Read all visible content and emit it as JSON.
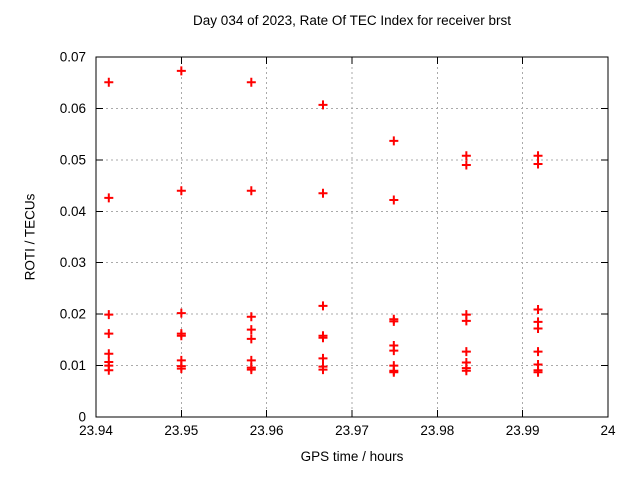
{
  "colors": {
    "marker": "#ff0000",
    "grid": "#aaaaaa",
    "axis": "#000000",
    "text": "#000000",
    "background": "#ffffff"
  },
  "chart_data": {
    "type": "scatter",
    "title": "Day 034 of 2023, Rate Of TEC Index for receiver brst",
    "xlabel": "GPS time / hours",
    "ylabel": "ROTI / TECUs",
    "xlim": [
      23.94,
      24
    ],
    "ylim": [
      0,
      0.07
    ],
    "xticks": [
      23.94,
      23.95,
      23.96,
      23.97,
      23.98,
      23.99,
      24
    ],
    "xtick_labels": [
      "23.94",
      "23.95",
      "23.96",
      "23.97",
      "23.98",
      "23.99",
      "24"
    ],
    "yticks": [
      0,
      0.01,
      0.02,
      0.03,
      0.04,
      0.05,
      0.06,
      0.07
    ],
    "ytick_labels": [
      "0",
      "0.01",
      "0.02",
      "0.03",
      "0.04",
      "0.05",
      "0.06",
      "0.07"
    ],
    "grid": true,
    "legend": "none",
    "marker": "plus",
    "points": [
      [
        23.9415,
        0.0651
      ],
      [
        23.9415,
        0.0426
      ],
      [
        23.9415,
        0.0199
      ],
      [
        23.9415,
        0.0162
      ],
      [
        23.9415,
        0.0123
      ],
      [
        23.9415,
        0.0107
      ],
      [
        23.9415,
        0.01
      ],
      [
        23.9415,
        0.0091
      ],
      [
        23.95,
        0.0673
      ],
      [
        23.95,
        0.044
      ],
      [
        23.95,
        0.0202
      ],
      [
        23.95,
        0.0162
      ],
      [
        23.95,
        0.0158
      ],
      [
        23.95,
        0.011
      ],
      [
        23.95,
        0.0099
      ],
      [
        23.95,
        0.0094
      ],
      [
        23.9582,
        0.0651
      ],
      [
        23.9582,
        0.044
      ],
      [
        23.9582,
        0.0195
      ],
      [
        23.9582,
        0.017
      ],
      [
        23.9582,
        0.0152
      ],
      [
        23.9582,
        0.011
      ],
      [
        23.9582,
        0.0096
      ],
      [
        23.9582,
        0.0092
      ],
      [
        23.9666,
        0.0607
      ],
      [
        23.9666,
        0.0435
      ],
      [
        23.9666,
        0.0216
      ],
      [
        23.9666,
        0.0158
      ],
      [
        23.9666,
        0.0154
      ],
      [
        23.9666,
        0.0114
      ],
      [
        23.9666,
        0.0098
      ],
      [
        23.9666,
        0.0092
      ],
      [
        23.9749,
        0.0537
      ],
      [
        23.9749,
        0.0422
      ],
      [
        23.9749,
        0.019
      ],
      [
        23.9749,
        0.0186
      ],
      [
        23.9749,
        0.0139
      ],
      [
        23.9749,
        0.0129
      ],
      [
        23.9749,
        0.01
      ],
      [
        23.9749,
        0.009
      ],
      [
        23.9749,
        0.0087
      ],
      [
        23.9834,
        0.0508
      ],
      [
        23.9834,
        0.049
      ],
      [
        23.9834,
        0.0199
      ],
      [
        23.9834,
        0.0187
      ],
      [
        23.9834,
        0.0127
      ],
      [
        23.9834,
        0.0106
      ],
      [
        23.9834,
        0.0095
      ],
      [
        23.9834,
        0.009
      ],
      [
        23.9918,
        0.0508
      ],
      [
        23.9918,
        0.0492
      ],
      [
        23.9918,
        0.0209
      ],
      [
        23.9918,
        0.0185
      ],
      [
        23.9918,
        0.0172
      ],
      [
        23.9918,
        0.0127
      ],
      [
        23.9918,
        0.0102
      ],
      [
        23.9918,
        0.0091
      ],
      [
        23.9918,
        0.0087
      ]
    ]
  }
}
